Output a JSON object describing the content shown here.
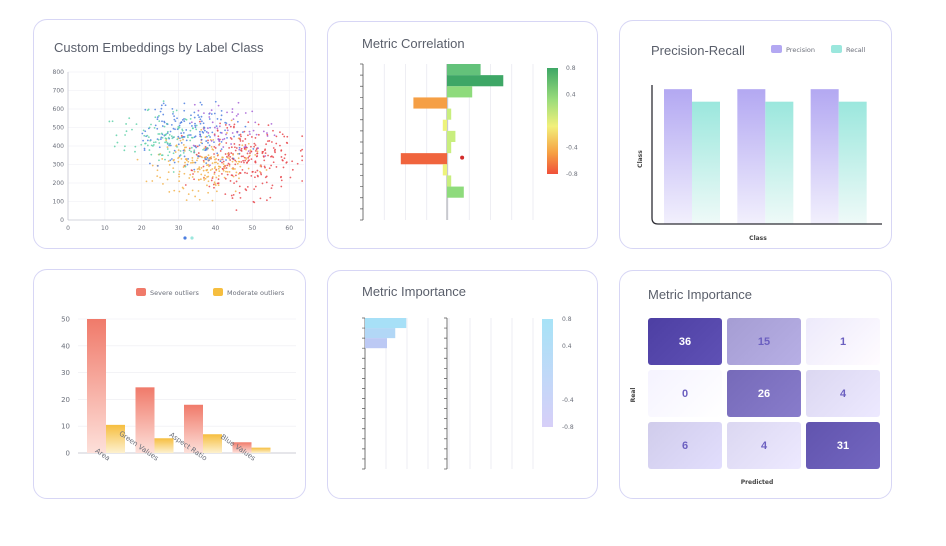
{
  "colors": {
    "border": "#d7d6f5",
    "precision": "#b3a8f2",
    "recall": "#9be7dd",
    "severe": "#f07a6a",
    "moderate": "#f6be3f",
    "importance": "#a7dcf7",
    "matrix_dark": "#4d3fa3",
    "matrix_light": "#f5f3ff"
  },
  "panels": {
    "embeddings": {
      "title": "Custom Embeddings by Label Class"
    },
    "correlation": {
      "title": "Metric Correlation"
    },
    "precision_recall": {
      "title": "Precision-Recall"
    },
    "outliers": {
      "title": ""
    },
    "importance": {
      "title": "Metric Importance"
    },
    "matrix": {
      "title": "Metric Importance"
    }
  },
  "chart_data": [
    {
      "id": "embeddings",
      "type": "scatter",
      "title": "Custom Embeddings by Label Class",
      "xlim": [
        0,
        64
      ],
      "ylim": [
        0,
        800
      ],
      "x_ticks": [
        "0",
        "10",
        "20",
        "30",
        "40",
        "50",
        "60"
      ],
      "y_ticks": [
        "0",
        "100",
        "200",
        "300",
        "400",
        "500",
        "600",
        "700",
        "800"
      ],
      "grid": true,
      "series": [
        {
          "color": "#e8484d",
          "cx": 48,
          "cy": 320,
          "sx": 11,
          "sy": 150,
          "n": 260
        },
        {
          "color": "#f2b24a",
          "cx": 37,
          "cy": 300,
          "sx": 11,
          "sy": 140,
          "n": 200
        },
        {
          "color": "#4d7fe0",
          "cx": 33,
          "cy": 470,
          "sx": 11,
          "sy": 150,
          "n": 170
        },
        {
          "color": "#5fd1a8",
          "cx": 26,
          "cy": 440,
          "sx": 10,
          "sy": 130,
          "n": 110
        },
        {
          "color": "#a45fd6",
          "cx": 44,
          "cy": 500,
          "sx": 10,
          "sy": 140,
          "n": 60
        }
      ],
      "pagination_dots": 2
    },
    {
      "id": "correlation",
      "type": "bar",
      "orientation": "horizontal",
      "title": "Metric Correlation",
      "xlim": [
        -0.8,
        1.0
      ],
      "values": [
        0.4,
        0.67,
        0.3,
        -0.4,
        0.05,
        -0.05,
        0.1,
        0.05,
        -0.55,
        -0.05,
        0.05,
        0.2,
        0.0,
        0.0
      ],
      "point": 0.18,
      "colorbar": {
        "ticks": [
          "0.8",
          "0.4",
          "-0.4",
          "-0.8"
        ],
        "range": [
          -0.8,
          0.8
        ]
      }
    },
    {
      "id": "precision_recall",
      "type": "bar",
      "title": "Precision-Recall",
      "xlabel": "Class",
      "ylabel": "Class",
      "ylim": [
        0,
        1
      ],
      "categories": [
        "",
        "",
        ""
      ],
      "series": [
        {
          "name": "Precision",
          "values": [
            0.97,
            0.97,
            0.97
          ]
        },
        {
          "name": "Recall",
          "values": [
            0.88,
            0.88,
            0.88
          ]
        }
      ]
    },
    {
      "id": "outliers",
      "type": "bar",
      "categories": [
        "Area",
        "Green Values",
        "Aspect Ratio",
        "Blue Values"
      ],
      "ylim": [
        0,
        50
      ],
      "y_ticks": [
        "0",
        "10",
        "20",
        "30",
        "40",
        "50"
      ],
      "legend": "top",
      "series": [
        {
          "name": "Severe outliers",
          "values": [
            50,
            24.5,
            18,
            4
          ]
        },
        {
          "name": "Moderate outliers",
          "values": [
            10.5,
            5.5,
            7,
            2
          ]
        }
      ]
    },
    {
      "id": "importance",
      "type": "bar",
      "orientation": "horizontal",
      "title": "Metric Importance",
      "xlim": [
        -0.8,
        1.0
      ],
      "values": [
        0.75,
        0.55,
        0.4,
        0,
        0,
        0,
        0,
        0,
        0,
        0,
        0,
        0,
        0,
        0,
        0
      ],
      "colorbar": {
        "ticks": [
          "0.8",
          "0.4",
          "-0.4",
          "-0.8"
        ],
        "range": [
          -0.8,
          0.8
        ]
      }
    },
    {
      "id": "matrix",
      "type": "heatmap",
      "title": "Metric Importance",
      "xlabel": "Predicted",
      "ylabel": "Real",
      "values": [
        [
          36,
          15,
          1
        ],
        [
          0,
          26,
          4
        ],
        [
          6,
          4,
          31
        ]
      ]
    }
  ]
}
